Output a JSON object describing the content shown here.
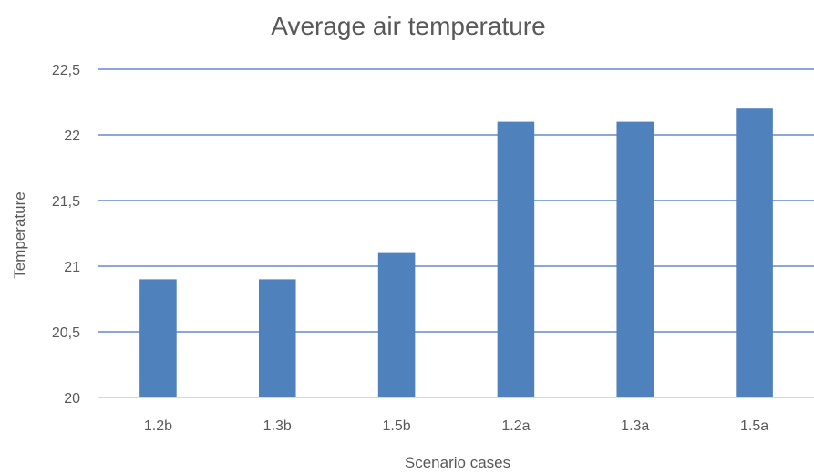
{
  "chart_data": {
    "type": "bar",
    "title": "Average air temperature",
    "xlabel": "Scenario cases",
    "ylabel": "Temperature",
    "categories": [
      "1.2b",
      "1.3b",
      "1.5b",
      "1.2a",
      "1.3a",
      "1.5a"
    ],
    "values": [
      20.9,
      20.9,
      21.1,
      22.1,
      22.1,
      22.2
    ],
    "ylim": [
      20,
      22.5
    ],
    "yticks": [
      20,
      20.5,
      21,
      21.5,
      22,
      22.5
    ],
    "ytick_labels": [
      "20",
      "20,5",
      "21",
      "21,5",
      "22",
      "22,5"
    ],
    "grid": true,
    "legend": "none",
    "colors": {
      "bar": "#4F81BD",
      "grid": "#4472C4",
      "axis": "#BFBFBF"
    }
  }
}
